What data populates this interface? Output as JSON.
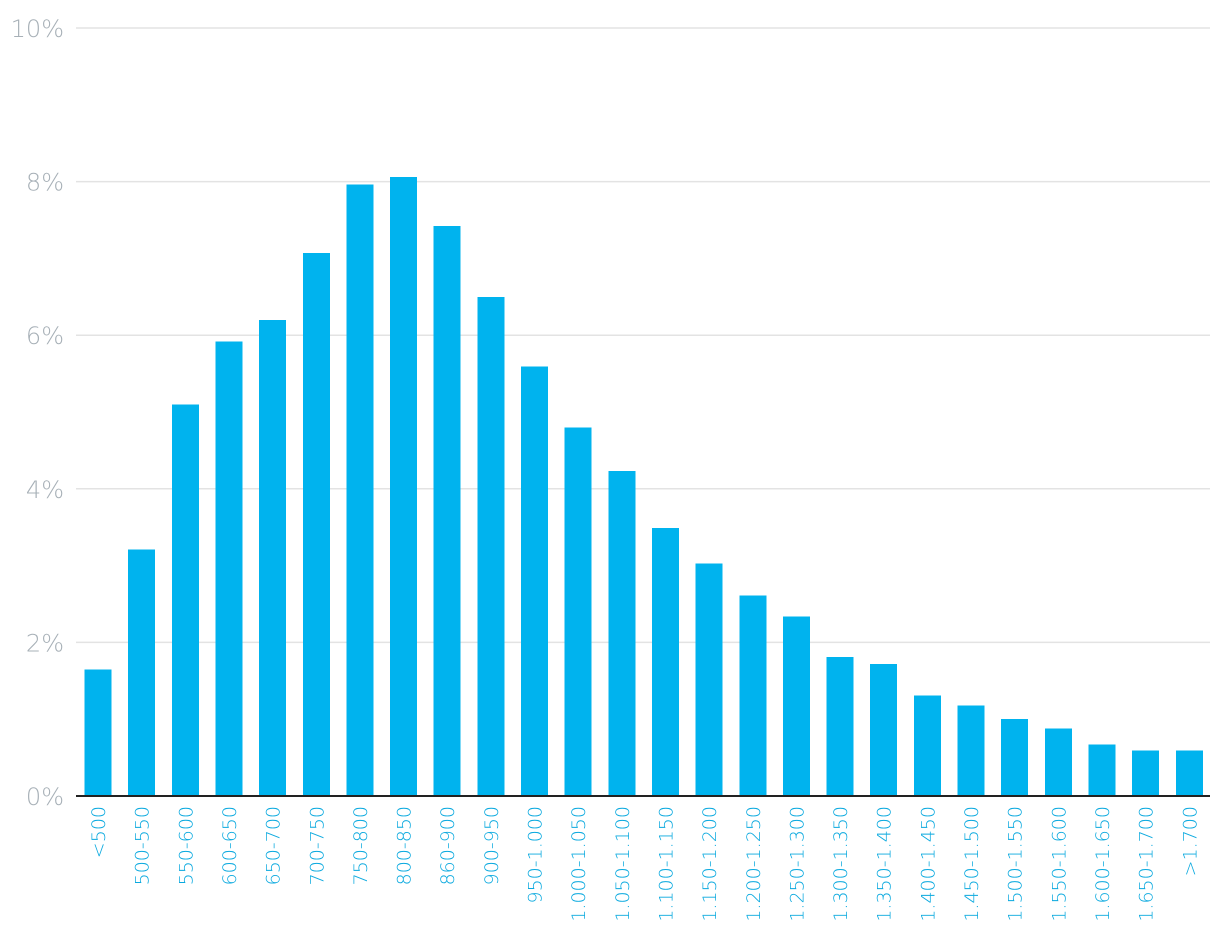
{
  "chart_data": {
    "type": "bar",
    "categories": [
      "<500",
      "500-550",
      "550-600",
      "600-650",
      "650-700",
      "700-750",
      "750-800",
      "800-850",
      "860-900",
      "900-950",
      "950-1.000",
      "1.000-1.050",
      "1.050-1.100",
      "1.100-1.150",
      "1.150-1.200",
      "1.200-1.250",
      "1.250-1.300",
      "1.300-1.350",
      "1.350-1.400",
      "1.400-1.450",
      "1.450-1.500",
      "1.500-1.550",
      "1.550-1.600",
      "1.600-1.650",
      "1.650-1.700",
      ">1.700"
    ],
    "values": [
      1.65,
      3.21,
      5.1,
      5.92,
      6.2,
      7.07,
      7.96,
      8.06,
      7.42,
      6.5,
      5.59,
      4.8,
      4.23,
      3.49,
      3.03,
      2.61,
      2.34,
      1.81,
      1.72,
      1.31,
      1.18,
      1.0,
      0.88,
      0.67,
      0.59,
      0.59
    ],
    "y_ticks": [
      "0%",
      "2%",
      "4%",
      "6%",
      "8%",
      "10%"
    ],
    "y_tick_values": [
      0,
      2,
      4,
      6,
      8,
      10
    ],
    "ylim": [
      0,
      10
    ],
    "bar_color": "#00b3ee",
    "grid": true,
    "legend": "none",
    "title": "",
    "xlabel": "",
    "ylabel": ""
  }
}
